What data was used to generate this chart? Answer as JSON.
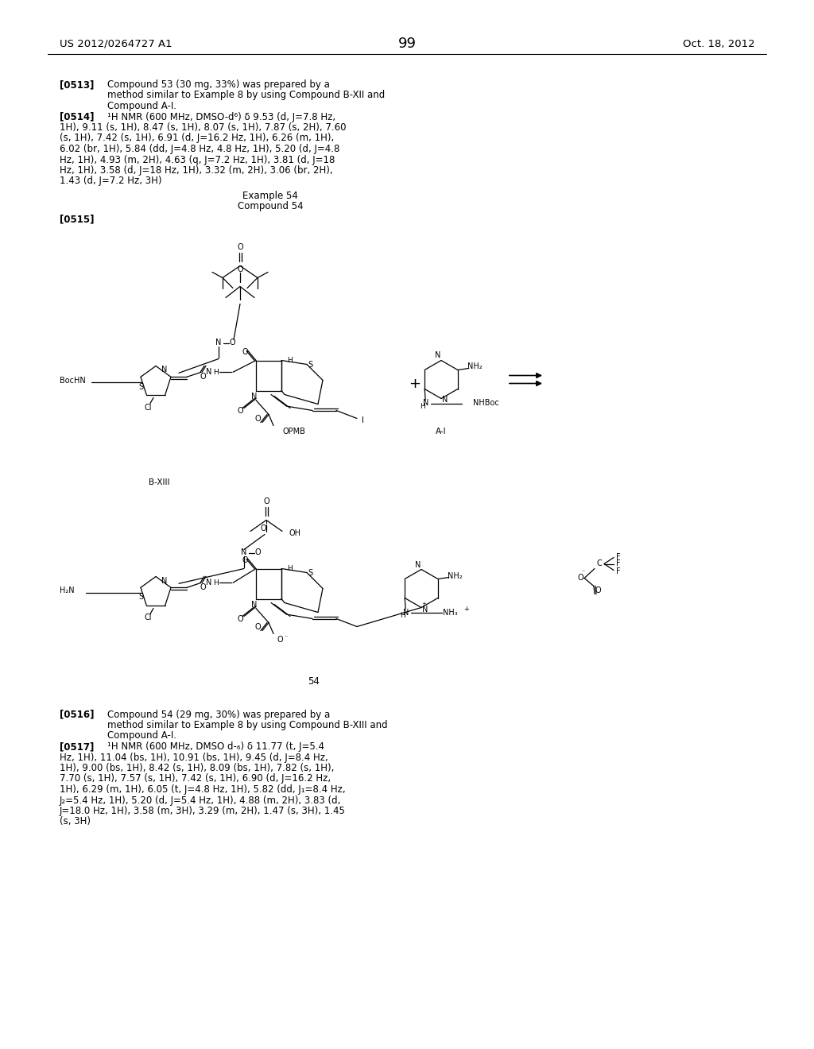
{
  "page_number": "99",
  "header_left": "US 2012/0264727 A1",
  "header_right": "Oct. 18, 2012",
  "para_0513_label": "[0513]",
  "para_0513_text_lines": [
    "Compound 53 (30 mg, 33%) was prepared by a",
    "method similar to Example 8 by using Compound B-XII and",
    "Compound A-I."
  ],
  "para_0514_label": "[0514]",
  "para_0514_text_lines": [
    "¹H NMR (600 MHz, DMSO-d⁶) δ 9.53 (d, J=7.8 Hz,",
    "1H), 9.11 (s, 1H), 8.47 (s, 1H), 8.07 (s, 1H), 7.87 (s, 2H), 7.60",
    "(s, 1H), 7.42 (s, 1H), 6.91 (d, J=16.2 Hz, 1H), 6.26 (m, 1H),",
    "6.02 (br, 1H), 5.84 (dd, J=4.8 Hz, 4.8 Hz, 1H), 5.20 (d, J=4.8",
    "Hz, 1H), 4.93 (m, 2H), 4.63 (q, J=7.2 Hz, 1H), 3.81 (d, J=18",
    "Hz, 1H), 3.58 (d, J=18 Hz, 1H), 3.32 (m, 2H), 3.06 (br, 2H),",
    "1.43 (d, J=7.2 Hz, 3H)"
  ],
  "example54_label": "Example 54",
  "compound54_label": "Compound 54",
  "para_0515_label": "[0515]",
  "para_0516_label": "[0516]",
  "para_0516_text_lines": [
    "Compound 54 (29 mg, 30%) was prepared by a",
    "method similar to Example 8 by using Compound B-XIII and",
    "Compound A-I."
  ],
  "para_0517_label": "[0517]",
  "para_0517_text_lines": [
    "¹H NMR (600 MHz, DMSO d-₆) δ 11.77 (t, J=5.4",
    "Hz, 1H), 11.04 (bs, 1H), 10.91 (bs, 1H), 9.45 (d, J=8.4 Hz,",
    "1H), 9.00 (bs, 1H), 8.42 (s, 1H), 8.09 (bs, 1H), 7.82 (s, 1H),",
    "7.70 (s, 1H), 7.57 (s, 1H), 7.42 (s, 1H), 6.90 (d, J=16.2 Hz,",
    "1H), 6.29 (m, 1H), 6.05 (t, J=4.8 Hz, 1H), 5.82 (dd, J₁=8.4 Hz,",
    "J₂=5.4 Hz, 1H), 5.20 (d, J=5.4 Hz, 1H), 4.88 (m, 2H), 3.83 (d,",
    "J=18.0 Hz, 1H), 3.58 (m, 3H), 3.29 (m, 2H), 1.47 (s, 3H), 1.45",
    "(s, 3H)"
  ],
  "background_color": "#ffffff",
  "text_color": "#000000"
}
